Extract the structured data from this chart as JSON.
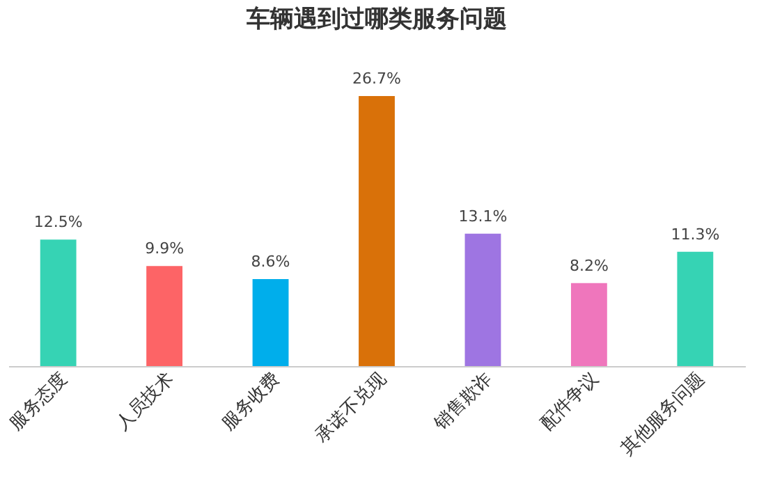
{
  "chart_data": {
    "type": "bar",
    "title": "车辆遇到过哪类服务问题",
    "categories": [
      "服务态度",
      "人员技术",
      "服务收费",
      "承诺不兑现",
      "销售欺诈",
      "配件争议",
      "其他服务问题"
    ],
    "values": [
      12.5,
      9.9,
      8.6,
      26.7,
      13.1,
      8.2,
      11.3
    ],
    "colors": [
      "#36d3b4",
      "#fd6466",
      "#00aeeb",
      "#d97109",
      "#9e75e2",
      "#ef76bc",
      "#36d3b4"
    ],
    "value_labels": [
      "12.5%",
      "9.9%",
      "8.6%",
      "26.7%",
      "13.1%",
      "8.2%",
      "11.3%"
    ]
  }
}
